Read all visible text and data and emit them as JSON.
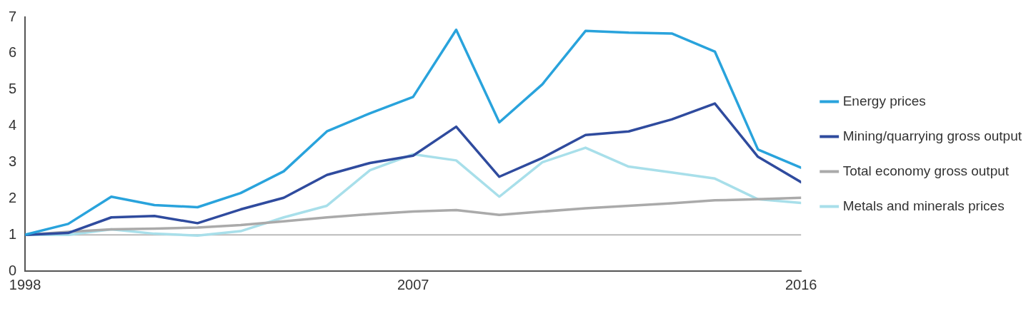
{
  "chart_data": {
    "type": "line",
    "x": [
      1998,
      1999,
      2000,
      2001,
      2002,
      2003,
      2004,
      2005,
      2006,
      2007,
      2008,
      2009,
      2010,
      2011,
      2012,
      2013,
      2014,
      2015,
      2016
    ],
    "series": [
      {
        "name": "Energy prices",
        "color": "#29a3dc",
        "values": [
          1.0,
          1.3,
          2.05,
          1.82,
          1.76,
          2.15,
          2.75,
          3.85,
          4.35,
          4.8,
          6.65,
          4.1,
          5.15,
          6.62,
          6.57,
          6.55,
          6.05,
          3.35,
          2.85
        ]
      },
      {
        "name": "Mining/quarrying gross output",
        "color": "#2f4b9e",
        "values": [
          1.0,
          1.05,
          1.48,
          1.52,
          1.32,
          1.7,
          2.02,
          2.65,
          2.98,
          3.18,
          3.98,
          2.6,
          3.12,
          3.75,
          3.85,
          4.18,
          4.62,
          3.15,
          2.45
        ]
      },
      {
        "name": "Total economy gross output",
        "color": "#aaaaaa",
        "values": [
          1.0,
          1.08,
          1.15,
          1.17,
          1.2,
          1.27,
          1.37,
          1.48,
          1.57,
          1.64,
          1.68,
          1.55,
          1.64,
          1.73,
          1.8,
          1.87,
          1.95,
          1.98,
          2.02
        ]
      },
      {
        "name": "Metals and minerals prices",
        "color": "#a8dfea",
        "values": [
          1.0,
          1.0,
          1.15,
          1.03,
          0.98,
          1.1,
          1.48,
          1.8,
          2.78,
          3.22,
          3.05,
          2.05,
          3.0,
          3.4,
          2.88,
          2.72,
          2.55,
          1.98,
          1.88
        ]
      }
    ],
    "xlim": [
      1998,
      2016
    ],
    "xticks": [
      1998,
      2007,
      2016
    ],
    "ylim": [
      0,
      7
    ],
    "yticks": [
      0,
      1,
      2,
      3,
      4,
      5,
      6,
      7
    ],
    "ref_lines": [
      {
        "axis": "y",
        "value": 1,
        "color": "#bbbbbb"
      }
    ],
    "grid": false,
    "legend": "right",
    "marker": "none",
    "line_style": "solid"
  }
}
